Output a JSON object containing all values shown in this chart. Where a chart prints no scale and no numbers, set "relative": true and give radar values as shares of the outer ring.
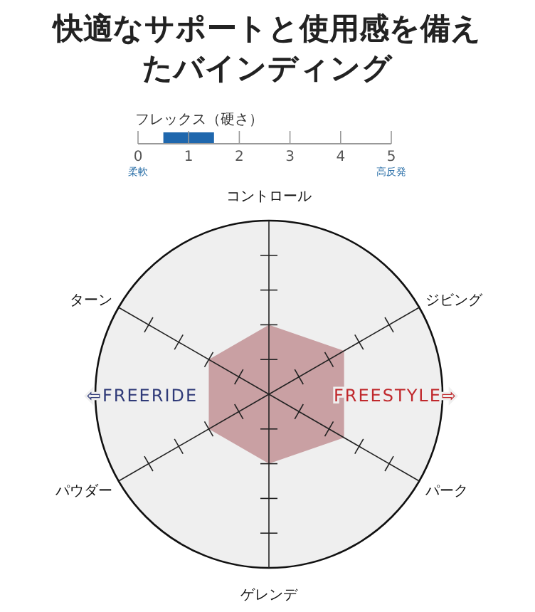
{
  "chart_data": [
    {
      "type": "other",
      "title": "快適なサポートと使用感を備えたバインディング"
    },
    {
      "type": "bar",
      "title": "フレックス（硬さ）",
      "orientation": "horizontal",
      "categories": [
        null
      ],
      "base": [
        0.5
      ],
      "values": [
        1.0
      ],
      "color": "#1f67ad",
      "xlim": [
        0,
        5
      ],
      "xticks": [
        0,
        1,
        2,
        3,
        4,
        5
      ],
      "annotations": [
        "柔軟",
        "高反発"
      ]
    },
    {
      "type": "radar",
      "relative": true,
      "categories": [
        "コントロール",
        "ジビング",
        "パーク",
        "ゲレンデ",
        "パウダー",
        "ターン"
      ],
      "series": [
        {
          "color": "#c9a0a3",
          "values": [
            0.4,
            0.5,
            0.5,
            0.4,
            0.4,
            0.4
          ]
        }
      ],
      "annotations": [
        "⇦FREERIDE",
        "FREESTYLE⇨"
      ]
    }
  ]
}
